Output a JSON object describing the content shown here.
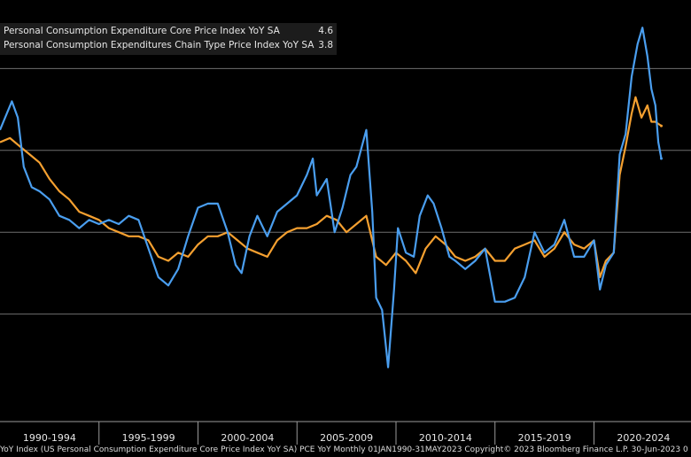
{
  "legend": [
    {
      "label": "Personal Consumption Expenditure Core Price Index YoY SA",
      "value": "4.6",
      "color": "#f5a030"
    },
    {
      "label": "Personal Consumption Expenditures Chain Type Price Index YoY SA",
      "value": "3.8",
      "color": "#4a9eef"
    }
  ],
  "footer": "YoY Index (US Personal Consumption Expenditure Core Price Index YoY SA) PCE YoY  Monthly 01JAN1990-31MAY2023  Copyright© 2023 Bloomberg Finance L.P.  30-Jun-2023 0",
  "chart_data": {
    "type": "line",
    "x_tick_labels": [
      "1990-1994",
      "1995-1999",
      "2000-2004",
      "2005-2009",
      "2010-2014",
      "2015-2019",
      "2020-2024"
    ],
    "x_range": [
      1990,
      2024.9
    ],
    "ylim": [
      -2.0,
      8.0
    ],
    "gridlines_y": [
      0,
      2,
      4,
      6
    ],
    "grid": true,
    "legend_position": "top-left",
    "series": [
      {
        "name": "Personal Consumption Expenditure Core Price Index YoY SA",
        "color": "#f5a030",
        "points": [
          [
            1990.0,
            4.2
          ],
          [
            1990.5,
            4.3
          ],
          [
            1991.0,
            4.1
          ],
          [
            1991.5,
            3.9
          ],
          [
            1992.0,
            3.7
          ],
          [
            1992.5,
            3.3
          ],
          [
            1993.0,
            3.0
          ],
          [
            1993.5,
            2.8
          ],
          [
            1994.0,
            2.5
          ],
          [
            1994.5,
            2.4
          ],
          [
            1995.0,
            2.3
          ],
          [
            1995.5,
            2.1
          ],
          [
            1996.0,
            2.0
          ],
          [
            1996.5,
            1.9
          ],
          [
            1997.0,
            1.9
          ],
          [
            1997.5,
            1.8
          ],
          [
            1998.0,
            1.4
          ],
          [
            1998.5,
            1.3
          ],
          [
            1999.0,
            1.5
          ],
          [
            1999.5,
            1.4
          ],
          [
            2000.0,
            1.7
          ],
          [
            2000.5,
            1.9
          ],
          [
            2001.0,
            1.9
          ],
          [
            2001.5,
            2.0
          ],
          [
            2002.0,
            1.8
          ],
          [
            2002.5,
            1.6
          ],
          [
            2003.0,
            1.5
          ],
          [
            2003.5,
            1.4
          ],
          [
            2004.0,
            1.8
          ],
          [
            2004.5,
            2.0
          ],
          [
            2005.0,
            2.1
          ],
          [
            2005.5,
            2.1
          ],
          [
            2006.0,
            2.2
          ],
          [
            2006.5,
            2.4
          ],
          [
            2007.0,
            2.3
          ],
          [
            2007.5,
            2.0
          ],
          [
            2008.0,
            2.2
          ],
          [
            2008.5,
            2.4
          ],
          [
            2009.0,
            1.4
          ],
          [
            2009.5,
            1.2
          ],
          [
            2010.0,
            1.5
          ],
          [
            2010.5,
            1.3
          ],
          [
            2011.0,
            1.0
          ],
          [
            2011.5,
            1.6
          ],
          [
            2012.0,
            1.9
          ],
          [
            2012.5,
            1.7
          ],
          [
            2013.0,
            1.4
          ],
          [
            2013.5,
            1.3
          ],
          [
            2014.0,
            1.4
          ],
          [
            2014.5,
            1.6
          ],
          [
            2015.0,
            1.3
          ],
          [
            2015.5,
            1.3
          ],
          [
            2016.0,
            1.6
          ],
          [
            2016.5,
            1.7
          ],
          [
            2017.0,
            1.8
          ],
          [
            2017.5,
            1.4
          ],
          [
            2018.0,
            1.6
          ],
          [
            2018.5,
            2.0
          ],
          [
            2019.0,
            1.7
          ],
          [
            2019.5,
            1.6
          ],
          [
            2020.0,
            1.8
          ],
          [
            2020.3,
            0.9
          ],
          [
            2020.6,
            1.3
          ],
          [
            2021.0,
            1.5
          ],
          [
            2021.3,
            3.4
          ],
          [
            2021.6,
            4.1
          ],
          [
            2021.9,
            4.9
          ],
          [
            2022.1,
            5.3
          ],
          [
            2022.4,
            4.8
          ],
          [
            2022.7,
            5.1
          ],
          [
            2022.9,
            4.7
          ],
          [
            2023.1,
            4.7
          ],
          [
            2023.4,
            4.6
          ]
        ]
      },
      {
        "name": "Personal Consumption Expenditures Chain Type Price Index YoY SA",
        "color": "#4a9eef",
        "points": [
          [
            1990.0,
            4.5
          ],
          [
            1990.6,
            5.2
          ],
          [
            1990.9,
            4.8
          ],
          [
            1991.2,
            3.6
          ],
          [
            1991.6,
            3.1
          ],
          [
            1992.0,
            3.0
          ],
          [
            1992.5,
            2.8
          ],
          [
            1993.0,
            2.4
          ],
          [
            1993.5,
            2.3
          ],
          [
            1994.0,
            2.1
          ],
          [
            1994.5,
            2.3
          ],
          [
            1995.0,
            2.2
          ],
          [
            1995.5,
            2.3
          ],
          [
            1996.0,
            2.2
          ],
          [
            1996.5,
            2.4
          ],
          [
            1997.0,
            2.3
          ],
          [
            1997.5,
            1.6
          ],
          [
            1998.0,
            0.9
          ],
          [
            1998.5,
            0.7
          ],
          [
            1999.0,
            1.1
          ],
          [
            1999.5,
            1.9
          ],
          [
            2000.0,
            2.6
          ],
          [
            2000.5,
            2.7
          ],
          [
            2001.0,
            2.7
          ],
          [
            2001.5,
            2.0
          ],
          [
            2001.9,
            1.2
          ],
          [
            2002.2,
            1.0
          ],
          [
            2002.6,
            1.9
          ],
          [
            2003.0,
            2.4
          ],
          [
            2003.5,
            1.9
          ],
          [
            2004.0,
            2.5
          ],
          [
            2004.5,
            2.7
          ],
          [
            2005.0,
            2.9
          ],
          [
            2005.5,
            3.4
          ],
          [
            2005.8,
            3.8
          ],
          [
            2006.0,
            2.9
          ],
          [
            2006.5,
            3.3
          ],
          [
            2006.9,
            2.0
          ],
          [
            2007.3,
            2.6
          ],
          [
            2007.7,
            3.4
          ],
          [
            2008.0,
            3.6
          ],
          [
            2008.5,
            4.5
          ],
          [
            2008.8,
            2.5
          ],
          [
            2009.0,
            0.4
          ],
          [
            2009.3,
            0.1
          ],
          [
            2009.6,
            -1.3
          ],
          [
            2009.9,
            0.6
          ],
          [
            2010.1,
            2.1
          ],
          [
            2010.5,
            1.5
          ],
          [
            2010.9,
            1.4
          ],
          [
            2011.2,
            2.4
          ],
          [
            2011.6,
            2.9
          ],
          [
            2011.9,
            2.7
          ],
          [
            2012.3,
            2.1
          ],
          [
            2012.7,
            1.4
          ],
          [
            2013.0,
            1.3
          ],
          [
            2013.5,
            1.1
          ],
          [
            2014.0,
            1.3
          ],
          [
            2014.5,
            1.6
          ],
          [
            2015.0,
            0.3
          ],
          [
            2015.5,
            0.3
          ],
          [
            2016.0,
            0.4
          ],
          [
            2016.5,
            0.9
          ],
          [
            2017.0,
            2.0
          ],
          [
            2017.5,
            1.5
          ],
          [
            2018.0,
            1.7
          ],
          [
            2018.5,
            2.3
          ],
          [
            2019.0,
            1.4
          ],
          [
            2019.5,
            1.4
          ],
          [
            2020.0,
            1.8
          ],
          [
            2020.3,
            0.6
          ],
          [
            2020.6,
            1.2
          ],
          [
            2021.0,
            1.5
          ],
          [
            2021.3,
            3.9
          ],
          [
            2021.6,
            4.4
          ],
          [
            2021.9,
            5.8
          ],
          [
            2022.2,
            6.6
          ],
          [
            2022.45,
            7.0
          ],
          [
            2022.7,
            6.3
          ],
          [
            2022.9,
            5.5
          ],
          [
            2023.1,
            5.1
          ],
          [
            2023.25,
            4.2
          ],
          [
            2023.4,
            3.8
          ]
        ]
      }
    ]
  }
}
